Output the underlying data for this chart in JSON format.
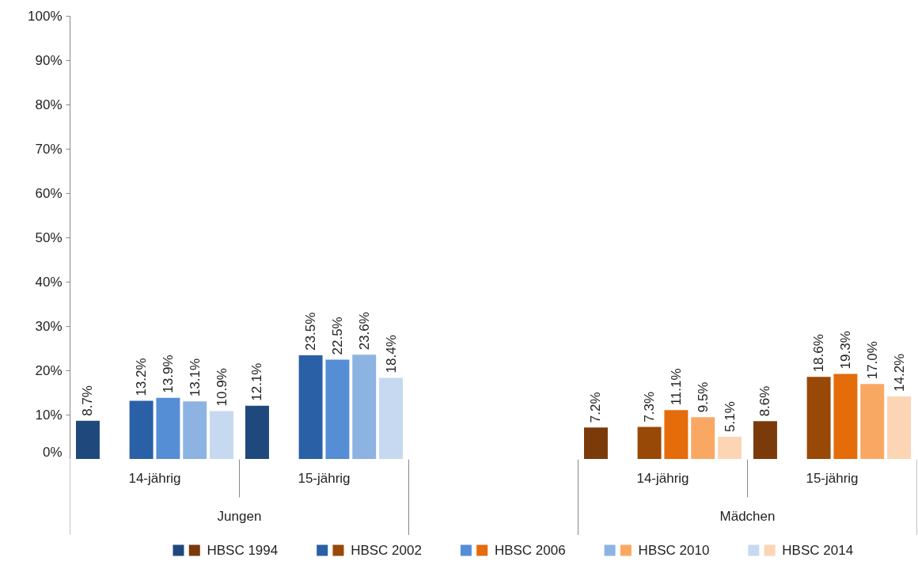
{
  "chart_data": {
    "type": "bar",
    "categories": [
      "14-jährig",
      "15-jährig",
      null,
      "14-jährig",
      "15-jährig"
    ],
    "annotations": [
      "Jungen",
      "Mädchen"
    ],
    "series": [
      {
        "name": "HBSC 1994",
        "colors": [
          "#1f497d",
          "#1f497d",
          null,
          "#7a3a0a",
          "#7a3a0a"
        ],
        "values": [
          8.7,
          12.1,
          null,
          7.2,
          8.6
        ],
        "value_labels": [
          "8.7%",
          "12.1%",
          null,
          "7.2%",
          "8.6%"
        ]
      },
      {
        "name": "HBSC 2002",
        "colors": [
          "#2a60a6",
          "#2a60a6",
          null,
          "#984807",
          "#984807"
        ],
        "values": [
          13.2,
          23.5,
          null,
          7.3,
          18.6
        ],
        "value_labels": [
          "13.2%",
          "23.5%",
          null,
          "7.3%",
          "18.6%"
        ]
      },
      {
        "name": "HBSC 2006",
        "colors": [
          "#558ed5",
          "#558ed5",
          null,
          "#e46c0a",
          "#e46c0a"
        ],
        "values": [
          13.9,
          22.5,
          null,
          11.1,
          19.3
        ],
        "value_labels": [
          "13.9%",
          "22.5%",
          null,
          "11.1%",
          "19.3%"
        ]
      },
      {
        "name": "HBSC 2010",
        "colors": [
          "#8db3e2",
          "#8db3e2",
          null,
          "#f9a864",
          "#f9a864"
        ],
        "values": [
          13.1,
          23.6,
          null,
          9.5,
          17.0
        ],
        "value_labels": [
          "13.1%",
          "23.6%",
          null,
          "9.5%",
          "17.0%"
        ]
      },
      {
        "name": "HBSC 2014",
        "colors": [
          "#c6d9f1",
          "#c6d9f1",
          null,
          "#fcd5b5",
          "#fcd5b5"
        ],
        "values": [
          10.9,
          18.4,
          null,
          5.1,
          14.2
        ],
        "value_labels": [
          "10.9%",
          "18.4%",
          null,
          "5.1%",
          "14.2%"
        ]
      }
    ],
    "ylim": [
      0,
      100
    ],
    "yticks": [
      {
        "value": 0,
        "label": "0%"
      },
      {
        "value": 10,
        "label": "10%"
      },
      {
        "value": 20,
        "label": "20%"
      },
      {
        "value": 30,
        "label": "30%"
      },
      {
        "value": 40,
        "label": "40%"
      },
      {
        "value": 50,
        "label": "50%"
      },
      {
        "value": 60,
        "label": "60%"
      },
      {
        "value": 70,
        "label": "70%"
      },
      {
        "value": 80,
        "label": "80%"
      },
      {
        "value": 90,
        "label": "90%"
      },
      {
        "value": 100,
        "label": "100%"
      }
    ],
    "grid": false,
    "legend": "bottom"
  }
}
